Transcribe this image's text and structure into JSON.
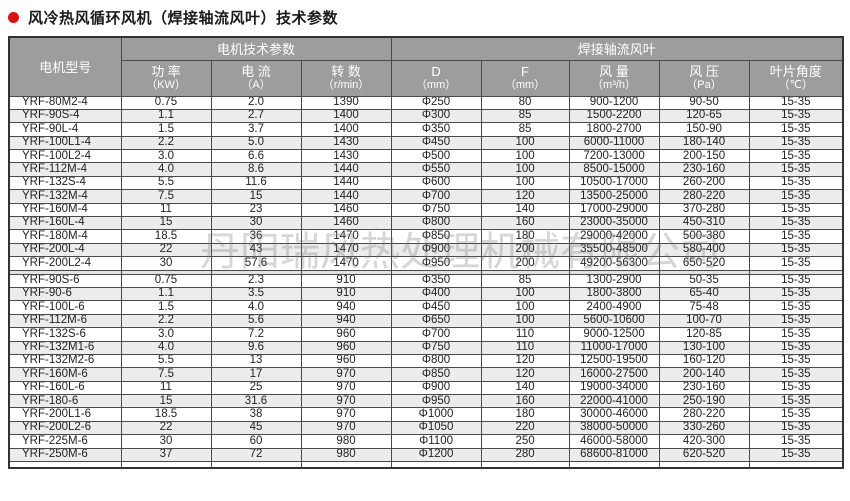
{
  "title": {
    "text": "风冷热风循环风机（焊接轴流风叶）技术参数",
    "bullet_color": "#dd1111"
  },
  "watermark": "丹阳瑞风热处理机械有限公司",
  "colors": {
    "header_bg": "#9d9d9d",
    "header_text": "#ffffff",
    "border": "#4a4a4a",
    "alt_row_bg": "#ececec"
  },
  "table": {
    "group_headers": {
      "model": "电机型号",
      "motor": "电机技术参数",
      "blade": "焊接轴流风叶"
    },
    "columns": [
      {
        "label": "功 率",
        "unit": "（KW）"
      },
      {
        "label": "电 流",
        "unit": "（A）"
      },
      {
        "label": "转 数",
        "unit": "（r/min）"
      },
      {
        "label": "D",
        "unit": "（mm）"
      },
      {
        "label": "F",
        "unit": "（mm）"
      },
      {
        "label": "风 量",
        "unit": "（m³/h）"
      },
      {
        "label": "风 压",
        "unit": "（Pa）"
      },
      {
        "label": "叶片角度",
        "unit": "（℃）"
      }
    ],
    "groups": [
      {
        "rows": [
          [
            "YRF-80M2-4",
            "0.75",
            "2.0",
            "1390",
            "Φ250",
            "80",
            "900-1200",
            "90-50",
            "15-35"
          ],
          [
            "YRF-90S-4",
            "1.1",
            "2.7",
            "1400",
            "Φ300",
            "85",
            "1500-2200",
            "120-65",
            "15-35"
          ],
          [
            "YRF-90L-4",
            "1.5",
            "3.7",
            "1400",
            "Φ350",
            "85",
            "1800-2700",
            "150-90",
            "15-35"
          ],
          [
            "YRF-100L1-4",
            "2.2",
            "5.0",
            "1430",
            "Φ450",
            "100",
            "6000-11000",
            "180-140",
            "15-35"
          ],
          [
            "YRF-100L2-4",
            "3.0",
            "6.6",
            "1430",
            "Φ500",
            "100",
            "7200-13000",
            "200-150",
            "15-35"
          ],
          [
            "YRF-112M-4",
            "4.0",
            "8.6",
            "1440",
            "Φ550",
            "100",
            "8500-15000",
            "230-160",
            "15-35"
          ],
          [
            "YRF-132S-4",
            "5.5",
            "11.6",
            "1440",
            "Φ600",
            "100",
            "10500-17000",
            "260-200",
            "15-35"
          ],
          [
            "YRF-132M-4",
            "7.5",
            "15",
            "1440",
            "Φ700",
            "120",
            "13500-25000",
            "280-220",
            "15-35"
          ],
          [
            "YRF-160M-4",
            "11",
            "23",
            "1460",
            "Φ750",
            "140",
            "17000-29000",
            "370-280",
            "15-35"
          ],
          [
            "YRF-160L-4",
            "15",
            "30",
            "1460",
            "Φ800",
            "160",
            "23000-35000",
            "450-310",
            "15-35"
          ],
          [
            "YRF-180M-4",
            "18.5",
            "36",
            "1470",
            "Φ850",
            "180",
            "29000-42000",
            "500-380",
            "15-35"
          ],
          [
            "YRF-200L-4",
            "22",
            "43",
            "1470",
            "Φ900",
            "200",
            "35500-48500",
            "580-400",
            "15-35"
          ],
          [
            "YRF-200L2-4",
            "30",
            "57.6",
            "1470",
            "Φ950",
            "200",
            "49200-56300",
            "650-520",
            "15-35"
          ]
        ]
      },
      {
        "rows": [
          [
            "YRF-90S-6",
            "0.75",
            "2.3",
            "910",
            "Φ350",
            "85",
            "1300-2900",
            "50-35",
            "15-35"
          ],
          [
            "YRF-90-6",
            "1.1",
            "3.5",
            "910",
            "Φ400",
            "100",
            "1800-3800",
            "65-40",
            "15-35"
          ],
          [
            "YRF-100L-6",
            "1.5",
            "4.0",
            "940",
            "Φ450",
            "100",
            "2400-4900",
            "75-48",
            "15-35"
          ],
          [
            "YRF-112M-6",
            "2.2",
            "5.6",
            "940",
            "Φ650",
            "100",
            "5600-10600",
            "100-70",
            "15-35"
          ],
          [
            "YRF-132S-6",
            "3.0",
            "7.2",
            "960",
            "Φ700",
            "110",
            "9000-12500",
            "120-85",
            "15-35"
          ],
          [
            "YRF-132M1-6",
            "4.0",
            "9.6",
            "960",
            "Φ750",
            "110",
            "11000-17000",
            "130-100",
            "15-35"
          ],
          [
            "YRF-132M2-6",
            "5.5",
            "13",
            "960",
            "Φ800",
            "120",
            "12500-19500",
            "160-120",
            "15-35"
          ],
          [
            "YRF-160M-6",
            "7.5",
            "17",
            "970",
            "Φ850",
            "120",
            "16000-27500",
            "200-140",
            "15-35"
          ],
          [
            "YRF-160L-6",
            "11",
            "25",
            "970",
            "Φ900",
            "140",
            "19000-34000",
            "230-160",
            "15-35"
          ],
          [
            "YRF-180-6",
            "15",
            "31.6",
            "970",
            "Φ950",
            "160",
            "22000-41000",
            "250-190",
            "15-35"
          ],
          [
            "YRF-200L1-6",
            "18.5",
            "38",
            "970",
            "Φ1000",
            "180",
            "30000-46000",
            "280-220",
            "15-35"
          ],
          [
            "YRF-200L2-6",
            "22",
            "45",
            "970",
            "Φ1050",
            "220",
            "38000-50000",
            "330-260",
            "15-35"
          ],
          [
            "YRF-225M-6",
            "30",
            "60",
            "980",
            "Φ1100",
            "250",
            "46000-58000",
            "420-300",
            "15-35"
          ],
          [
            "YRF-250M-6",
            "37",
            "72",
            "980",
            "Φ1200",
            "280",
            "68600-81000",
            "620-520",
            "15-35"
          ]
        ]
      }
    ]
  }
}
